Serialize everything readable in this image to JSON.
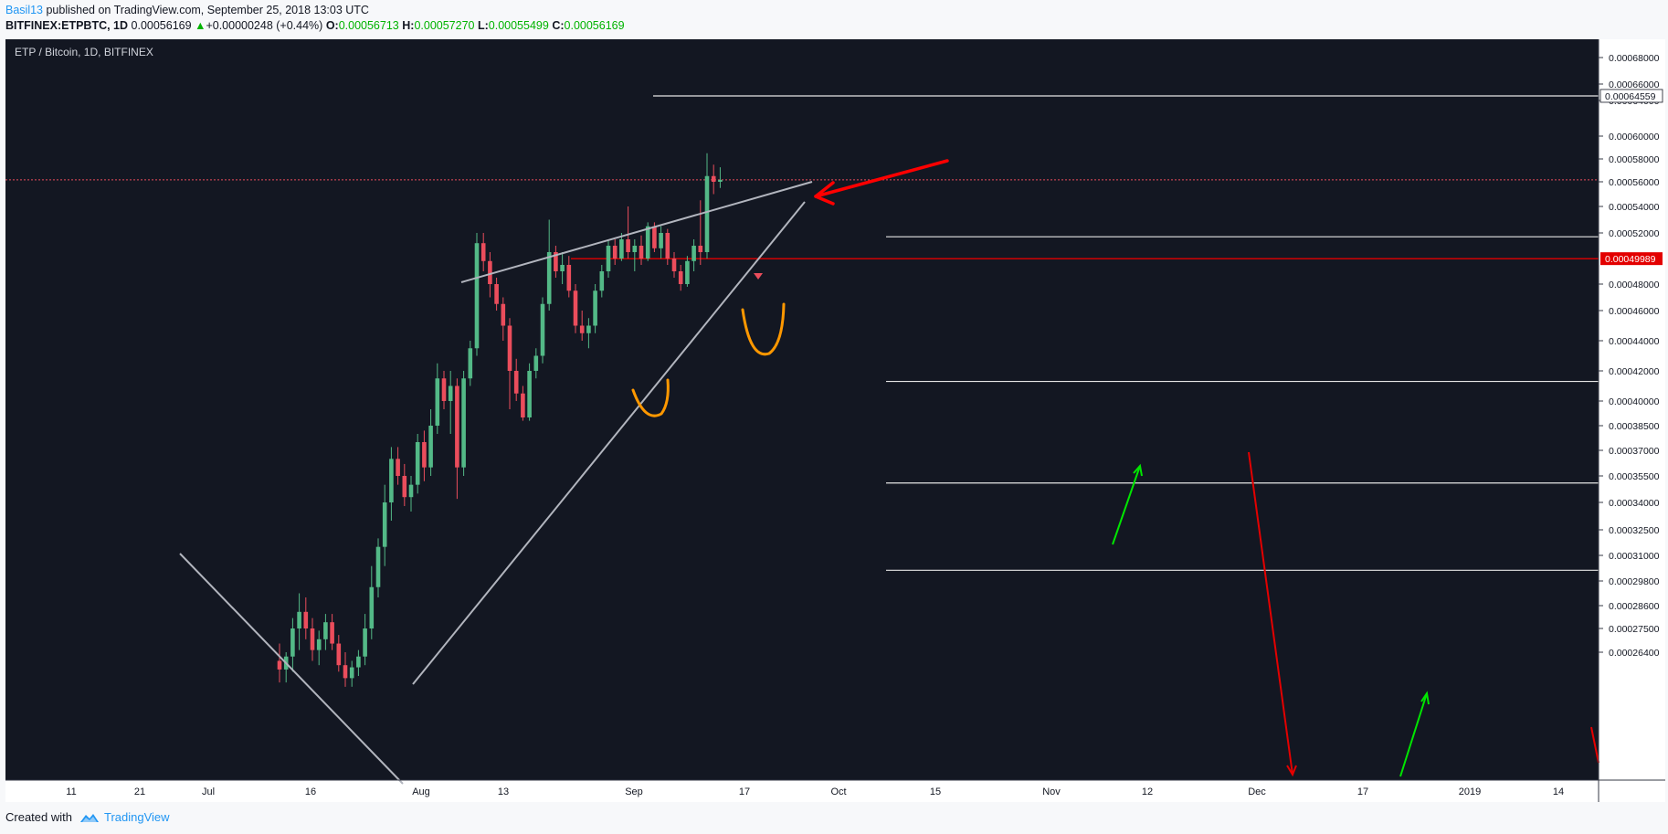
{
  "header": {
    "user": "Basil13",
    "published_text": "published on TradingView.com, September 25, 2018 13:03 UTC",
    "symbol": "BITFINEX:ETPBTC, 1D",
    "last": "0.00056169",
    "change_arrow": "▲",
    "change": "+0.00000248 (+0.44%)",
    "o_label": "O:",
    "o_value": "0.00056713",
    "h_label": "H:",
    "h_value": "0.00057270",
    "l_label": "L:",
    "l_value": "0.00055499",
    "c_label": "C:",
    "c_value": "0.00056169"
  },
  "footer": {
    "created_with": "Created with",
    "brand": "TradingView"
  },
  "colors": {
    "background": "#131722",
    "up": "#53b987",
    "down": "#eb4d5c",
    "resistance": "#e30000",
    "marker_red": "#ff0000",
    "marker_green": "#00e600",
    "marker_orange": "#ff9800",
    "trendline": "#b2b5be"
  },
  "chart_data": {
    "type": "candlestick",
    "title": "ETP / Bitcoin, 1D, BITFINEX",
    "y_ticks": [
      "0.00068000",
      "0.00066000",
      "0.00064000",
      "0.00060000",
      "0.00058000",
      "0.00056000",
      "0.00054000",
      "0.00052000",
      "0.00048000",
      "0.00046000",
      "0.00044000",
      "0.00042000",
      "0.00040000",
      "0.00038500",
      "0.00037000",
      "0.00035500",
      "0.00034000",
      "0.00032500",
      "0.00031000",
      "0.00029800",
      "0.00028600",
      "0.00027500",
      "0.00026400"
    ],
    "x_ticks": [
      "11",
      "21",
      "Jul",
      "16",
      "Aug",
      "13",
      "Sep",
      "17",
      "Oct",
      "15",
      "Nov",
      "12",
      "Dec",
      "17",
      "2019",
      "14"
    ],
    "price_labels": [
      {
        "value": "0.00064559",
        "style": "box"
      },
      {
        "value": "0.00049989",
        "style": "red"
      }
    ],
    "horizontal_levels": [
      0.00064559,
      0.000517,
      0.000413,
      0.000351,
      0.000303
    ],
    "last_price_line": 0.00056169,
    "resistance_line": 0.00049989,
    "candles": [
      {
        "o": 0.00026,
        "h": 0.000268,
        "l": 0.00025,
        "c": 0.000256
      },
      {
        "o": 0.000256,
        "h": 0.000264,
        "l": 0.00025,
        "c": 0.000262
      },
      {
        "o": 0.000262,
        "h": 0.00028,
        "l": 0.000255,
        "c": 0.000275
      },
      {
        "o": 0.000275,
        "h": 0.000292,
        "l": 0.000265,
        "c": 0.000283
      },
      {
        "o": 0.000283,
        "h": 0.00029,
        "l": 0.00027,
        "c": 0.000275
      },
      {
        "o": 0.000275,
        "h": 0.00028,
        "l": 0.00026,
        "c": 0.000265
      },
      {
        "o": 0.000265,
        "h": 0.000274,
        "l": 0.000258,
        "c": 0.00027
      },
      {
        "o": 0.00027,
        "h": 0.000282,
        "l": 0.000265,
        "c": 0.000278
      },
      {
        "o": 0.000278,
        "h": 0.000282,
        "l": 0.000265,
        "c": 0.000268
      },
      {
        "o": 0.000268,
        "h": 0.000272,
        "l": 0.000255,
        "c": 0.000258
      },
      {
        "o": 0.000258,
        "h": 0.000264,
        "l": 0.000248,
        "c": 0.000252
      },
      {
        "o": 0.000252,
        "h": 0.00026,
        "l": 0.000248,
        "c": 0.000257
      },
      {
        "o": 0.000257,
        "h": 0.000265,
        "l": 0.000253,
        "c": 0.000262
      },
      {
        "o": 0.000262,
        "h": 0.000282,
        "l": 0.000258,
        "c": 0.000275
      },
      {
        "o": 0.000275,
        "h": 0.000305,
        "l": 0.00027,
        "c": 0.000295
      },
      {
        "o": 0.000295,
        "h": 0.00032,
        "l": 0.00029,
        "c": 0.000315
      },
      {
        "o": 0.000315,
        "h": 0.00035,
        "l": 0.000305,
        "c": 0.00034
      },
      {
        "o": 0.00034,
        "h": 0.000372,
        "l": 0.00033,
        "c": 0.000365
      },
      {
        "o": 0.000365,
        "h": 0.000372,
        "l": 0.00035,
        "c": 0.000355
      },
      {
        "o": 0.000355,
        "h": 0.000362,
        "l": 0.000338,
        "c": 0.000343
      },
      {
        "o": 0.000343,
        "h": 0.000355,
        "l": 0.000335,
        "c": 0.00035
      },
      {
        "o": 0.00035,
        "h": 0.00038,
        "l": 0.000345,
        "c": 0.000375
      },
      {
        "o": 0.000375,
        "h": 0.000382,
        "l": 0.000352,
        "c": 0.00036
      },
      {
        "o": 0.00036,
        "h": 0.000395,
        "l": 0.000355,
        "c": 0.000385
      },
      {
        "o": 0.000385,
        "h": 0.000425,
        "l": 0.00038,
        "c": 0.000415
      },
      {
        "o": 0.000415,
        "h": 0.00042,
        "l": 0.000395,
        "c": 0.0004
      },
      {
        "o": 0.0004,
        "h": 0.00042,
        "l": 0.00038,
        "c": 0.00041
      },
      {
        "o": 0.00041,
        "h": 0.000415,
        "l": 0.000342,
        "c": 0.00036
      },
      {
        "o": 0.00036,
        "h": 0.00042,
        "l": 0.000355,
        "c": 0.000415
      },
      {
        "o": 0.000415,
        "h": 0.00044,
        "l": 0.00041,
        "c": 0.000435
      },
      {
        "o": 0.000435,
        "h": 0.00052,
        "l": 0.00043,
        "c": 0.000512
      },
      {
        "o": 0.000512,
        "h": 0.00052,
        "l": 0.00049,
        "c": 0.000498
      },
      {
        "o": 0.000498,
        "h": 0.000505,
        "l": 0.00047,
        "c": 0.00048
      },
      {
        "o": 0.00048,
        "h": 0.000485,
        "l": 0.00046,
        "c": 0.000465
      },
      {
        "o": 0.000465,
        "h": 0.00047,
        "l": 0.00044,
        "c": 0.00045
      },
      {
        "o": 0.00045,
        "h": 0.000455,
        "l": 0.000395,
        "c": 0.00042
      },
      {
        "o": 0.00042,
        "h": 0.000428,
        "l": 0.0004,
        "c": 0.000405
      },
      {
        "o": 0.000405,
        "h": 0.00041,
        "l": 0.000388,
        "c": 0.00039
      },
      {
        "o": 0.00039,
        "h": 0.000425,
        "l": 0.000388,
        "c": 0.00042
      },
      {
        "o": 0.00042,
        "h": 0.000435,
        "l": 0.000415,
        "c": 0.00043
      },
      {
        "o": 0.00043,
        "h": 0.00047,
        "l": 0.000425,
        "c": 0.000465
      },
      {
        "o": 0.000465,
        "h": 0.00053,
        "l": 0.00046,
        "c": 0.000505
      },
      {
        "o": 0.000505,
        "h": 0.00051,
        "l": 0.000485,
        "c": 0.00049
      },
      {
        "o": 0.00049,
        "h": 0.000505,
        "l": 0.00048,
        "c": 0.000495
      },
      {
        "o": 0.000495,
        "h": 0.000502,
        "l": 0.00047,
        "c": 0.000475
      },
      {
        "o": 0.000475,
        "h": 0.00048,
        "l": 0.000445,
        "c": 0.00045
      },
      {
        "o": 0.00045,
        "h": 0.00046,
        "l": 0.00044,
        "c": 0.000445
      },
      {
        "o": 0.000445,
        "h": 0.000455,
        "l": 0.000435,
        "c": 0.00045
      },
      {
        "o": 0.00045,
        "h": 0.00048,
        "l": 0.000445,
        "c": 0.000475
      },
      {
        "o": 0.000475,
        "h": 0.000495,
        "l": 0.00047,
        "c": 0.00049
      },
      {
        "o": 0.00049,
        "h": 0.000515,
        "l": 0.000485,
        "c": 0.00051
      },
      {
        "o": 0.00051,
        "h": 0.000515,
        "l": 0.000495,
        "c": 0.0005
      },
      {
        "o": 0.0005,
        "h": 0.00052,
        "l": 0.000498,
        "c": 0.000515
      },
      {
        "o": 0.000515,
        "h": 0.00054,
        "l": 0.0005,
        "c": 0.000505
      },
      {
        "o": 0.000505,
        "h": 0.000515,
        "l": 0.00049,
        "c": 0.00051
      },
      {
        "o": 0.00051,
        "h": 0.000518,
        "l": 0.000495,
        "c": 0.0005
      },
      {
        "o": 0.0005,
        "h": 0.000528,
        "l": 0.000498,
        "c": 0.000525
      },
      {
        "o": 0.000525,
        "h": 0.000528,
        "l": 0.000505,
        "c": 0.000508
      },
      {
        "o": 0.000508,
        "h": 0.000525,
        "l": 0.0005,
        "c": 0.00052
      },
      {
        "o": 0.00052,
        "h": 0.000523,
        "l": 0.000495,
        "c": 0.0005
      },
      {
        "o": 0.0005,
        "h": 0.000505,
        "l": 0.000485,
        "c": 0.00049
      },
      {
        "o": 0.00049,
        "h": 0.000495,
        "l": 0.000475,
        "c": 0.00048
      },
      {
        "o": 0.00048,
        "h": 0.000502,
        "l": 0.000478,
        "c": 0.000498
      },
      {
        "o": 0.000498,
        "h": 0.000515,
        "l": 0.00049,
        "c": 0.00051
      },
      {
        "o": 0.00051,
        "h": 0.000545,
        "l": 0.000495,
        "c": 0.000505
      },
      {
        "o": 0.000505,
        "h": 0.000585,
        "l": 0.0005,
        "c": 0.000565
      },
      {
        "o": 0.000565,
        "h": 0.000575,
        "l": 0.00055,
        "c": 0.00056
      },
      {
        "o": 0.00056,
        "h": 0.0005727,
        "l": 0.000555,
        "c": 0.0005617
      }
    ]
  }
}
